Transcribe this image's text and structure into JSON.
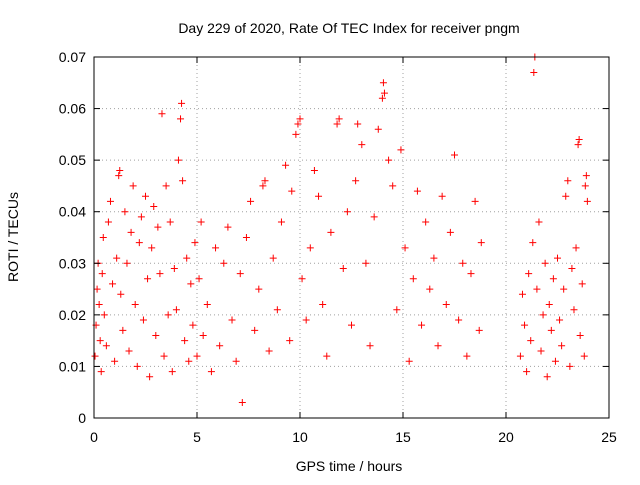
{
  "chart_data": {
    "type": "scatter",
    "title": "Day 229 of 2020, Rate Of TEC Index for receiver pngm",
    "xlabel": "GPS time / hours",
    "ylabel": "ROTI / TECUs",
    "xlim": [
      0,
      25
    ],
    "ylim": [
      0,
      0.07
    ],
    "x_ticks": [
      0,
      5,
      10,
      15,
      20,
      25
    ],
    "x_tick_labels": [
      "0",
      "5",
      "10",
      "15",
      "20",
      "25"
    ],
    "y_ticks": [
      0,
      0.01,
      0.02,
      0.03,
      0.04,
      0.05,
      0.06,
      0.07
    ],
    "y_tick_labels": [
      "0",
      "0.01",
      "0.02",
      "0.03",
      "0.04",
      "0.05",
      "0.06",
      "0.07"
    ],
    "grid": true,
    "grid_style": "dotted",
    "marker": "plus",
    "series_color": "#ff0000",
    "series": [
      {
        "points": [
          [
            0.05,
            0.012
          ],
          [
            0.1,
            0.018
          ],
          [
            0.15,
            0.025
          ],
          [
            0.2,
            0.03
          ],
          [
            0.25,
            0.022
          ],
          [
            0.3,
            0.015
          ],
          [
            0.35,
            0.009
          ],
          [
            0.4,
            0.028
          ],
          [
            0.45,
            0.035
          ],
          [
            0.5,
            0.02
          ],
          [
            0.6,
            0.014
          ],
          [
            0.7,
            0.038
          ],
          [
            0.8,
            0.042
          ],
          [
            0.9,
            0.026
          ],
          [
            1.0,
            0.011
          ],
          [
            1.1,
            0.031
          ],
          [
            1.2,
            0.047
          ],
          [
            1.25,
            0.048
          ],
          [
            1.3,
            0.024
          ],
          [
            1.4,
            0.017
          ],
          [
            1.5,
            0.04
          ],
          [
            1.6,
            0.03
          ],
          [
            1.7,
            0.013
          ],
          [
            1.8,
            0.036
          ],
          [
            1.9,
            0.045
          ],
          [
            2.0,
            0.022
          ],
          [
            2.1,
            0.01
          ],
          [
            2.2,
            0.034
          ],
          [
            2.3,
            0.039
          ],
          [
            2.4,
            0.019
          ],
          [
            2.5,
            0.043
          ],
          [
            2.6,
            0.027
          ],
          [
            2.7,
            0.008
          ],
          [
            2.8,
            0.033
          ],
          [
            2.9,
            0.041
          ],
          [
            3.0,
            0.016
          ],
          [
            3.1,
            0.037
          ],
          [
            3.2,
            0.028
          ],
          [
            3.3,
            0.059
          ],
          [
            3.4,
            0.012
          ],
          [
            3.5,
            0.045
          ],
          [
            3.6,
            0.02
          ],
          [
            3.7,
            0.038
          ],
          [
            3.8,
            0.009
          ],
          [
            3.9,
            0.029
          ],
          [
            4.0,
            0.021
          ],
          [
            4.1,
            0.05
          ],
          [
            4.2,
            0.058
          ],
          [
            4.25,
            0.061
          ],
          [
            4.3,
            0.046
          ],
          [
            4.4,
            0.015
          ],
          [
            4.5,
            0.031
          ],
          [
            4.6,
            0.011
          ],
          [
            4.7,
            0.026
          ],
          [
            4.8,
            0.018
          ],
          [
            4.9,
            0.034
          ],
          [
            5.0,
            0.012
          ],
          [
            5.1,
            0.027
          ],
          [
            5.2,
            0.038
          ],
          [
            5.3,
            0.016
          ],
          [
            5.5,
            0.022
          ],
          [
            5.7,
            0.009
          ],
          [
            5.9,
            0.033
          ],
          [
            6.1,
            0.014
          ],
          [
            6.3,
            0.03
          ],
          [
            6.5,
            0.037
          ],
          [
            6.7,
            0.019
          ],
          [
            6.9,
            0.011
          ],
          [
            7.1,
            0.028
          ],
          [
            7.2,
            0.003
          ],
          [
            7.4,
            0.035
          ],
          [
            7.6,
            0.042
          ],
          [
            7.8,
            0.017
          ],
          [
            8.0,
            0.025
          ],
          [
            8.2,
            0.045
          ],
          [
            8.3,
            0.046
          ],
          [
            8.5,
            0.013
          ],
          [
            8.7,
            0.031
          ],
          [
            8.9,
            0.021
          ],
          [
            9.1,
            0.038
          ],
          [
            9.3,
            0.049
          ],
          [
            9.5,
            0.015
          ],
          [
            9.6,
            0.044
          ],
          [
            9.8,
            0.055
          ],
          [
            9.9,
            0.057
          ],
          [
            10.0,
            0.058
          ],
          [
            10.1,
            0.027
          ],
          [
            10.3,
            0.019
          ],
          [
            10.5,
            0.033
          ],
          [
            10.7,
            0.048
          ],
          [
            10.9,
            0.043
          ],
          [
            11.1,
            0.022
          ],
          [
            11.3,
            0.012
          ],
          [
            11.5,
            0.036
          ],
          [
            11.8,
            0.057
          ],
          [
            11.9,
            0.058
          ],
          [
            12.1,
            0.029
          ],
          [
            12.3,
            0.04
          ],
          [
            12.5,
            0.018
          ],
          [
            12.7,
            0.046
          ],
          [
            12.8,
            0.057
          ],
          [
            13.0,
            0.053
          ],
          [
            13.2,
            0.03
          ],
          [
            13.4,
            0.014
          ],
          [
            13.6,
            0.039
          ],
          [
            13.8,
            0.056
          ],
          [
            14.0,
            0.062
          ],
          [
            14.05,
            0.065
          ],
          [
            14.1,
            0.063
          ],
          [
            14.3,
            0.05
          ],
          [
            14.5,
            0.045
          ],
          [
            14.7,
            0.021
          ],
          [
            14.9,
            0.052
          ],
          [
            15.1,
            0.033
          ],
          [
            15.3,
            0.011
          ],
          [
            15.5,
            0.027
          ],
          [
            15.7,
            0.044
          ],
          [
            15.9,
            0.018
          ],
          [
            16.1,
            0.038
          ],
          [
            16.3,
            0.025
          ],
          [
            16.5,
            0.031
          ],
          [
            16.7,
            0.014
          ],
          [
            16.9,
            0.043
          ],
          [
            17.1,
            0.022
          ],
          [
            17.3,
            0.036
          ],
          [
            17.5,
            0.051
          ],
          [
            17.7,
            0.019
          ],
          [
            17.9,
            0.03
          ],
          [
            18.1,
            0.012
          ],
          [
            18.3,
            0.028
          ],
          [
            18.5,
            0.042
          ],
          [
            18.7,
            0.017
          ],
          [
            18.8,
            0.034
          ],
          [
            20.7,
            0.012
          ],
          [
            20.8,
            0.024
          ],
          [
            20.9,
            0.018
          ],
          [
            21.0,
            0.009
          ],
          [
            21.1,
            0.028
          ],
          [
            21.2,
            0.015
          ],
          [
            21.3,
            0.034
          ],
          [
            21.35,
            0.067
          ],
          [
            21.4,
            0.07
          ],
          [
            21.5,
            0.025
          ],
          [
            21.6,
            0.038
          ],
          [
            21.7,
            0.013
          ],
          [
            21.8,
            0.02
          ],
          [
            21.9,
            0.03
          ],
          [
            22.0,
            0.008
          ],
          [
            22.1,
            0.022
          ],
          [
            22.2,
            0.017
          ],
          [
            22.3,
            0.027
          ],
          [
            22.4,
            0.011
          ],
          [
            22.5,
            0.031
          ],
          [
            22.6,
            0.019
          ],
          [
            22.7,
            0.014
          ],
          [
            22.8,
            0.025
          ],
          [
            22.9,
            0.043
          ],
          [
            23.0,
            0.046
          ],
          [
            23.1,
            0.01
          ],
          [
            23.2,
            0.029
          ],
          [
            23.3,
            0.021
          ],
          [
            23.4,
            0.033
          ],
          [
            23.5,
            0.053
          ],
          [
            23.55,
            0.054
          ],
          [
            23.6,
            0.016
          ],
          [
            23.7,
            0.026
          ],
          [
            23.8,
            0.012
          ],
          [
            23.85,
            0.045
          ],
          [
            23.9,
            0.047
          ],
          [
            23.95,
            0.042
          ]
        ]
      }
    ]
  }
}
